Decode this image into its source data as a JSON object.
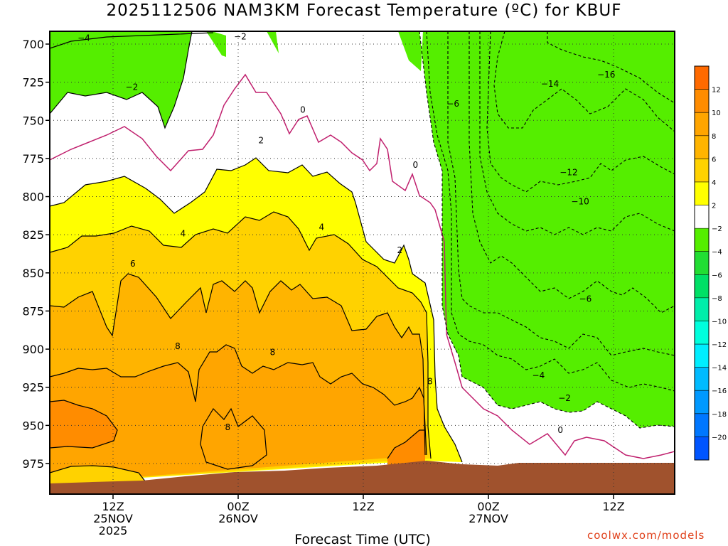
{
  "title": "2025112506 NAM3KM Forecast Temperature (ºC) for KBUF",
  "credit": "coolwx.com/models",
  "colors": {
    "frame": "#000000",
    "terrain": "#a0522d",
    "zero_line": "#c0206e",
    "fill_ge12": "#ff6a00",
    "fill_10_12": "#ff8c00",
    "fill_8_10": "#ffa500",
    "fill_6_8": "#ffb400",
    "fill_4_6": "#ffd200",
    "fill_2_4": "#ffff00",
    "fill_-2_2": "#ffffff",
    "fill_-4_-2": "#55ee00",
    "fill_-6_-4": "#22dd33",
    "fill_-8_-6": "#00e066",
    "fill_-10_-8": "#00eeaa",
    "fill_-12_-10": "#00ffdd",
    "fill_-14_-12": "#00eeff",
    "fill_-16_-14": "#00bbff",
    "fill_-18_-16": "#0099ff",
    "fill_-20_-18": "#0077ff",
    "fill_le-20": "#0055ff"
  },
  "chart_data": {
    "type": "heatmap",
    "title": "2025112506 NAM3KM Forecast Temperature (ºC) for KBUF",
    "xlabel": "Forecast Time (UTC)",
    "ylabel": "",
    "x_ticks": [
      {
        "hours": 6,
        "lines": [
          "12Z",
          "25NOV",
          "2025"
        ]
      },
      {
        "hours": 18,
        "lines": [
          "00Z",
          "26NOV"
        ]
      },
      {
        "hours": 30,
        "lines": [
          "12Z"
        ]
      },
      {
        "hours": 42,
        "lines": [
          "00Z",
          "27NOV"
        ]
      },
      {
        "hours": 54,
        "lines": [
          "12Z"
        ]
      }
    ],
    "xlim_hours": [
      0,
      60
    ],
    "y_ticks": [
      700,
      725,
      750,
      775,
      800,
      825,
      850,
      875,
      900,
      925,
      950,
      975
    ],
    "ylim_hPa": [
      693,
      1000
    ],
    "grid": true,
    "colorbar_labels": [
      12,
      10,
      8,
      6,
      4,
      2,
      -2,
      -4,
      -6,
      -8,
      -10,
      -12,
      -14,
      -16,
      -18,
      -20
    ],
    "contour_labels": [
      {
        "text": "−4",
        "hours": 3.2,
        "hPa": 698
      },
      {
        "text": "−2",
        "hours": 18.2,
        "hPa": 697
      },
      {
        "text": "−2",
        "hours": 7.8,
        "hPa": 730
      },
      {
        "text": "0",
        "hours": 24.2,
        "hPa": 745
      },
      {
        "text": "2",
        "hours": 20.2,
        "hPa": 765
      },
      {
        "text": "0",
        "hours": 35,
        "hPa": 781
      },
      {
        "text": "4",
        "hours": 12.7,
        "hPa": 826
      },
      {
        "text": "4",
        "hours": 26,
        "hPa": 822
      },
      {
        "text": "2",
        "hours": 33.5,
        "hPa": 837
      },
      {
        "text": "6",
        "hours": 7.9,
        "hPa": 846
      },
      {
        "text": "8",
        "hours": 12.2,
        "hPa": 900
      },
      {
        "text": "8",
        "hours": 21.3,
        "hPa": 904
      },
      {
        "text": "8",
        "hours": 17,
        "hPa": 953
      },
      {
        "text": "8",
        "hours": 36.4,
        "hPa": 923
      },
      {
        "text": "−6",
        "hours": 38.6,
        "hPa": 741
      },
      {
        "text": "−14",
        "hours": 47.9,
        "hPa": 728
      },
      {
        "text": "−16",
        "hours": 53.3,
        "hPa": 722
      },
      {
        "text": "−12",
        "hours": 49.7,
        "hPa": 786
      },
      {
        "text": "−10",
        "hours": 50.8,
        "hPa": 805
      },
      {
        "text": "−6",
        "hours": 51.3,
        "hPa": 869
      },
      {
        "text": "−4",
        "hours": 46.8,
        "hPa": 919
      },
      {
        "text": "−2",
        "hours": 49.3,
        "hPa": 934
      },
      {
        "text": "0",
        "hours": 48.9,
        "hPa": 955
      }
    ]
  }
}
